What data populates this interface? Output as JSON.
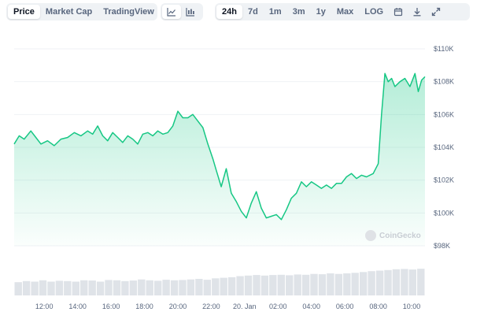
{
  "toolbar": {
    "metric_tabs": [
      "Price",
      "Market Cap",
      "TradingView"
    ],
    "active_metric": "Price",
    "chart_type_icons": [
      "line-chart-icon",
      "candlestick-icon"
    ],
    "range_tabs": [
      "24h",
      "7d",
      "1m",
      "3m",
      "1y",
      "Max",
      "LOG"
    ],
    "active_range": "24h",
    "action_icons": [
      "calendar-icon",
      "download-icon",
      "expand-icon"
    ]
  },
  "watermark": "CoinGecko",
  "colors": {
    "line": "#16c784",
    "fill_top": "#16c784",
    "grid": "#eff2f5",
    "text": "#58667e"
  },
  "chart_data": {
    "type": "area",
    "x_tick_labels": [
      "12:00",
      "14:00",
      "16:00",
      "18:00",
      "20:00",
      "22:00",
      "20. Jan",
      "02:00",
      "04:00",
      "06:00",
      "08:00",
      "10:00"
    ],
    "y_tick_labels": [
      "$98K",
      "$100K",
      "$102K",
      "$104K",
      "$106K",
      "$108K",
      "$110K"
    ],
    "ylim": [
      98000,
      110000
    ],
    "x_range_hours": [
      10.2,
      34.8
    ],
    "price_series": [
      [
        10.2,
        104200
      ],
      [
        10.5,
        104700
      ],
      [
        10.8,
        104500
      ],
      [
        11.2,
        105000
      ],
      [
        11.5,
        104600
      ],
      [
        11.8,
        104200
      ],
      [
        12.2,
        104400
      ],
      [
        12.6,
        104100
      ],
      [
        13.0,
        104500
      ],
      [
        13.4,
        104600
      ],
      [
        13.8,
        104900
      ],
      [
        14.2,
        104700
      ],
      [
        14.6,
        105000
      ],
      [
        14.9,
        104800
      ],
      [
        15.2,
        105300
      ],
      [
        15.5,
        104700
      ],
      [
        15.8,
        104400
      ],
      [
        16.1,
        104900
      ],
      [
        16.4,
        104600
      ],
      [
        16.7,
        104300
      ],
      [
        17.0,
        104700
      ],
      [
        17.3,
        104500
      ],
      [
        17.6,
        104200
      ],
      [
        17.9,
        104800
      ],
      [
        18.2,
        104900
      ],
      [
        18.5,
        104700
      ],
      [
        18.8,
        105000
      ],
      [
        19.1,
        104800
      ],
      [
        19.4,
        104900
      ],
      [
        19.7,
        105300
      ],
      [
        20.0,
        106200
      ],
      [
        20.3,
        105800
      ],
      [
        20.6,
        105800
      ],
      [
        20.9,
        106000
      ],
      [
        21.2,
        105600
      ],
      [
        21.5,
        105200
      ],
      [
        21.8,
        104200
      ],
      [
        22.1,
        103300
      ],
      [
        22.3,
        102600
      ],
      [
        22.6,
        101600
      ],
      [
        22.9,
        102700
      ],
      [
        23.2,
        101200
      ],
      [
        23.5,
        100700
      ],
      [
        23.8,
        100100
      ],
      [
        24.1,
        99700
      ],
      [
        24.4,
        100600
      ],
      [
        24.7,
        101300
      ],
      [
        25.0,
        100300
      ],
      [
        25.3,
        99700
      ],
      [
        25.6,
        99800
      ],
      [
        25.9,
        99900
      ],
      [
        26.2,
        99600
      ],
      [
        26.5,
        100200
      ],
      [
        26.8,
        100900
      ],
      [
        27.1,
        101200
      ],
      [
        27.4,
        101900
      ],
      [
        27.7,
        101600
      ],
      [
        28.0,
        101900
      ],
      [
        28.3,
        101700
      ],
      [
        28.6,
        101500
      ],
      [
        28.9,
        101700
      ],
      [
        29.2,
        101500
      ],
      [
        29.5,
        101800
      ],
      [
        29.8,
        101800
      ],
      [
        30.1,
        102200
      ],
      [
        30.4,
        102400
      ],
      [
        30.7,
        102100
      ],
      [
        31.0,
        102300
      ],
      [
        31.3,
        102200
      ],
      [
        31.7,
        102400
      ],
      [
        32.0,
        103000
      ],
      [
        32.2,
        106000
      ],
      [
        32.4,
        108500
      ],
      [
        32.6,
        108000
      ],
      [
        32.8,
        108200
      ],
      [
        33.0,
        107700
      ],
      [
        33.3,
        108000
      ],
      [
        33.6,
        108200
      ],
      [
        33.9,
        107700
      ],
      [
        34.2,
        108500
      ],
      [
        34.4,
        107400
      ],
      [
        34.6,
        108100
      ],
      [
        34.8,
        108300
      ]
    ],
    "volume_series": [
      0.48,
      0.52,
      0.5,
      0.55,
      0.5,
      0.53,
      0.52,
      0.5,
      0.55,
      0.54,
      0.5,
      0.56,
      0.55,
      0.52,
      0.54,
      0.58,
      0.55,
      0.53,
      0.57,
      0.55,
      0.56,
      0.58,
      0.6,
      0.57,
      0.62,
      0.64,
      0.66,
      0.7,
      0.72,
      0.74,
      0.72,
      0.74,
      0.75,
      0.73,
      0.76,
      0.75,
      0.78,
      0.77,
      0.8,
      0.78,
      0.8,
      0.82,
      0.85,
      0.88,
      0.9,
      0.92,
      0.95,
      0.96,
      0.94,
      0.97
    ],
    "grid": true,
    "legend": "none"
  }
}
